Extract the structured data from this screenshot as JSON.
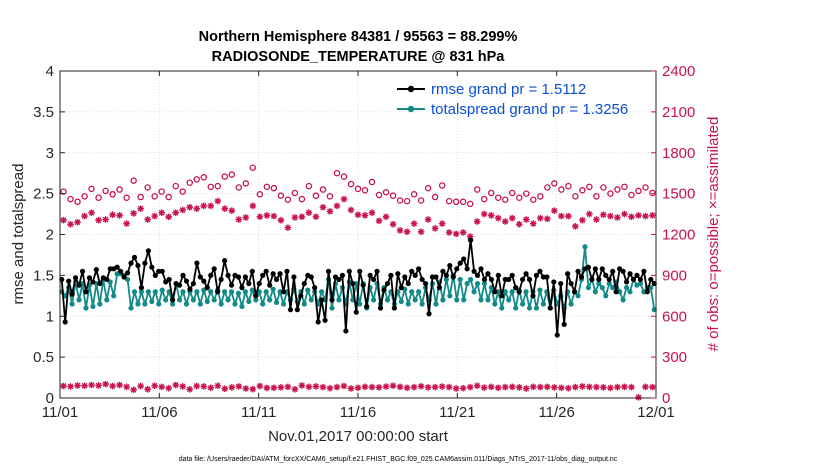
{
  "chart_data": {
    "type": "line",
    "title_line1": "Northern Hemisphere 84381 / 95563 = 88.299%",
    "title_line2": "RADIOSONDE_TEMPERATURE @ 831 hPa",
    "xlabel": "Nov.01,2017 00:00:00 start",
    "ylabel_left": "rmse and totalspread",
    "ylabel_right": "# of obs: o=possible; ×=assimilated",
    "footer": "data file: /Users/raeder/DAI/ATM_forcXX/CAM6_setup/f.e21.FHIST_BGC.f09_025.CAM6assim.011/Diags_NTrS_2017-11/obs_diag_output.nc",
    "colors": {
      "rmse": "#000000",
      "spread": "#138a8a",
      "obs": "#c8134b",
      "legend_text": "#0a4fd6"
    },
    "x_ticks": [
      "11/01",
      "11/06",
      "11/11",
      "11/16",
      "11/21",
      "11/26",
      "12/01"
    ],
    "x_range_days": [
      0,
      30
    ],
    "y_left_ticks": [
      "0",
      "0.5",
      "1",
      "1.5",
      "2",
      "2.5",
      "3",
      "3.5",
      "4"
    ],
    "y_left_range": [
      0,
      4
    ],
    "y_right_ticks": [
      "0",
      "300",
      "600",
      "900",
      "1200",
      "1500",
      "1800",
      "2100",
      "2400"
    ],
    "y_right_range": [
      0,
      2400
    ],
    "legend": [
      {
        "label": "rmse grand pr = 1.5112",
        "series": "rmse"
      },
      {
        "label": "totalspread grand pr = 1.3256",
        "series": "spread"
      }
    ],
    "series": [
      {
        "name": "rmse",
        "axis": "left",
        "values": [
          1.45,
          0.93,
          1.43,
          1.27,
          1.47,
          1.38,
          1.55,
          1.3,
          1.47,
          1.42,
          1.57,
          1.4,
          1.47,
          1.45,
          1.58,
          1.58,
          1.6,
          1.55,
          1.48,
          1.53,
          1.65,
          1.72,
          1.62,
          1.35,
          1.65,
          1.8,
          1.6,
          1.5,
          1.55,
          1.55,
          1.42,
          1.45,
          1.2,
          1.4,
          1.38,
          1.5,
          1.43,
          1.33,
          1.4,
          1.65,
          1.48,
          1.43,
          1.35,
          1.5,
          1.58,
          1.3,
          1.45,
          1.68,
          1.5,
          1.38,
          1.5,
          1.48,
          1.35,
          1.48,
          1.4,
          1.55,
          1.25,
          1.4,
          1.5,
          1.55,
          1.38,
          1.52,
          1.45,
          1.52,
          1.3,
          1.55,
          1.08,
          1.48,
          1.08,
          1.25,
          1.4,
          1.5,
          1.48,
          1.35,
          0.93,
          1.2,
          0.95,
          1.55,
          1.2,
          1.48,
          1.45,
          1.5,
          0.82,
          1.55,
          1.4,
          1.05,
          1.55,
          1.38,
          1.12,
          1.5,
          1.45,
          1.55,
          1.1,
          1.32,
          1.4,
          1.5,
          1.1,
          1.52,
          1.35,
          1.48,
          1.4,
          1.55,
          1.5,
          1.58,
          1.45,
          1.4,
          1.03,
          1.48,
          1.48,
          1.35,
          1.55,
          1.5,
          1.62,
          1.48,
          1.58,
          1.65,
          1.7,
          1.58,
          1.93,
          1.55,
          1.5,
          1.58,
          1.45,
          1.52,
          1.45,
          1.3,
          1.5,
          1.25,
          1.45,
          1.45,
          1.5,
          1.35,
          1.3,
          1.45,
          1.52,
          1.45,
          1.25,
          1.5,
          1.55,
          1.48,
          1.48,
          1.1,
          1.42,
          0.77,
          1.4,
          0.9,
          1.52,
          1.4,
          1.3,
          1.55,
          1.48,
          1.58,
          1.6,
          1.45,
          1.58,
          1.45,
          1.58,
          1.5,
          1.45,
          1.55,
          1.3,
          1.58,
          1.55,
          1.42,
          1.52,
          1.45,
          1.5,
          1.45,
          1.55,
          1.3,
          1.45,
          1.4
        ]
      },
      {
        "name": "totalspread",
        "axis": "left",
        "values": [
          1.3,
          1.25,
          1.35,
          1.15,
          1.42,
          1.2,
          1.4,
          1.1,
          1.38,
          1.12,
          1.4,
          1.15,
          1.45,
          1.2,
          1.42,
          1.25,
          1.52,
          1.52,
          1.5,
          1.45,
          1.1,
          1.3,
          1.15,
          1.3,
          1.15,
          1.3,
          1.18,
          1.3,
          1.15,
          1.32,
          1.2,
          1.3,
          1.15,
          1.4,
          1.2,
          1.3,
          1.15,
          1.3,
          1.2,
          1.3,
          1.15,
          1.32,
          1.18,
          1.3,
          1.2,
          1.32,
          1.15,
          1.3,
          1.2,
          1.3,
          1.15,
          1.28,
          1.12,
          1.3,
          1.18,
          1.32,
          1.2,
          1.3,
          1.15,
          1.3,
          1.2,
          1.33,
          1.17,
          1.3,
          1.15,
          1.3,
          1.2,
          1.33,
          1.18,
          1.3,
          1.15,
          1.32,
          1.2,
          1.3,
          1.15,
          1.3,
          1.2,
          1.45,
          1.1,
          1.4,
          1.2,
          1.35,
          1.15,
          1.42,
          1.2,
          1.4,
          1.15,
          1.4,
          1.1,
          1.35,
          1.2,
          1.4,
          1.15,
          1.35,
          1.2,
          1.3,
          1.15,
          1.3,
          1.18,
          1.33,
          1.15,
          1.3,
          1.2,
          1.3,
          1.15,
          1.35,
          1.2,
          1.4,
          1.15,
          1.42,
          1.2,
          1.45,
          1.25,
          1.5,
          1.2,
          1.45,
          1.2,
          1.4,
          1.45,
          1.3,
          1.4,
          1.2,
          1.4,
          1.2,
          1.35,
          1.15,
          1.3,
          1.1,
          1.3,
          1.2,
          1.3,
          1.1,
          1.32,
          1.15,
          1.3,
          1.1,
          1.3,
          1.1,
          1.32,
          1.15,
          1.3,
          1.1,
          1.32,
          1.15,
          1.25,
          1.1,
          1.3,
          1.15,
          1.3,
          1.25,
          1.45,
          1.85,
          1.35,
          1.45,
          1.3,
          1.4,
          1.35,
          1.25,
          1.4,
          1.35,
          1.42,
          1.3,
          1.2,
          1.35,
          1.3,
          1.45,
          1.38,
          1.4,
          1.3,
          1.35,
          1.35,
          1.08
        ]
      },
      {
        "name": "obs possible",
        "axis": "right",
        "values": [
          1515,
          1460,
          1440,
          1480,
          1535,
          1470,
          1520,
          1495,
          1530,
          1470,
          1595,
          1475,
          1545,
          1480,
          1515,
          1475,
          1555,
          1515,
          1580,
          1605,
          1620,
          1550,
          1555,
          1625,
          1640,
          1545,
          1575,
          1690,
          1495,
          1550,
          1540,
          1485,
          1455,
          1505,
          1460,
          1555,
          1485,
          1530,
          1480,
          1650,
          1625,
          1570,
          1535,
          1525,
          1585,
          1490,
          1510,
          1485,
          1450,
          1445,
          1495,
          1450,
          1540,
          1475,
          1560,
          1445,
          1440,
          1440,
          1425,
          1530,
          1460,
          1505,
          1470,
          1455,
          1505,
          1470,
          1500,
          1455,
          1480,
          1545,
          1575,
          1530,
          1555,
          1480,
          1525,
          1550,
          1480,
          1545,
          1500,
          1530,
          1550,
          1490,
          1520,
          1545,
          1505
        ]
      },
      {
        "name": "obs assimilated",
        "axis": "right",
        "values": [
          1305,
          1275,
          1290,
          1335,
          1360,
          1305,
          1310,
          1345,
          1340,
          1280,
          1355,
          1390,
          1310,
          1335,
          1360,
          1330,
          1360,
          1380,
          1400,
          1390,
          1410,
          1410,
          1445,
          1390,
          1375,
          1310,
          1325,
          1410,
          1330,
          1340,
          1335,
          1305,
          1250,
          1325,
          1330,
          1360,
          1330,
          1400,
          1370,
          1410,
          1460,
          1380,
          1345,
          1340,
          1360,
          1300,
          1330,
          1275,
          1230,
          1220,
          1280,
          1220,
          1310,
          1245,
          1280,
          1215,
          1205,
          1215,
          1185,
          1295,
          1350,
          1340,
          1320,
          1295,
          1320,
          1275,
          1310,
          1280,
          1320,
          1315,
          1375,
          1335,
          1335,
          1260,
          1305,
          1350,
          1310,
          1345,
          1335,
          1325,
          1350,
          1330,
          1340,
          1335,
          1340
        ]
      },
      {
        "name": "obs low",
        "axis": "right",
        "values": [
          88,
          85,
          92,
          90,
          95,
          92,
          102,
          88,
          95,
          82,
          60,
          88,
          64,
          90,
          82,
          72,
          95,
          85,
          64,
          88,
          85,
          75,
          90,
          68,
          78,
          85,
          70,
          65,
          88,
          74,
          75,
          78,
          82,
          64,
          92,
          82,
          85,
          80,
          72,
          80,
          88,
          70,
          75,
          82,
          80,
          78,
          84,
          90,
          82,
          75,
          80,
          86,
          78,
          80,
          84,
          80,
          70,
          72,
          80,
          90,
          76,
          82,
          75,
          80,
          82,
          78,
          70,
          82,
          80,
          82,
          78,
          75,
          72,
          80,
          85,
          82,
          80,
          78,
          74,
          80,
          82,
          80,
          5,
          82,
          80
        ]
      }
    ]
  }
}
